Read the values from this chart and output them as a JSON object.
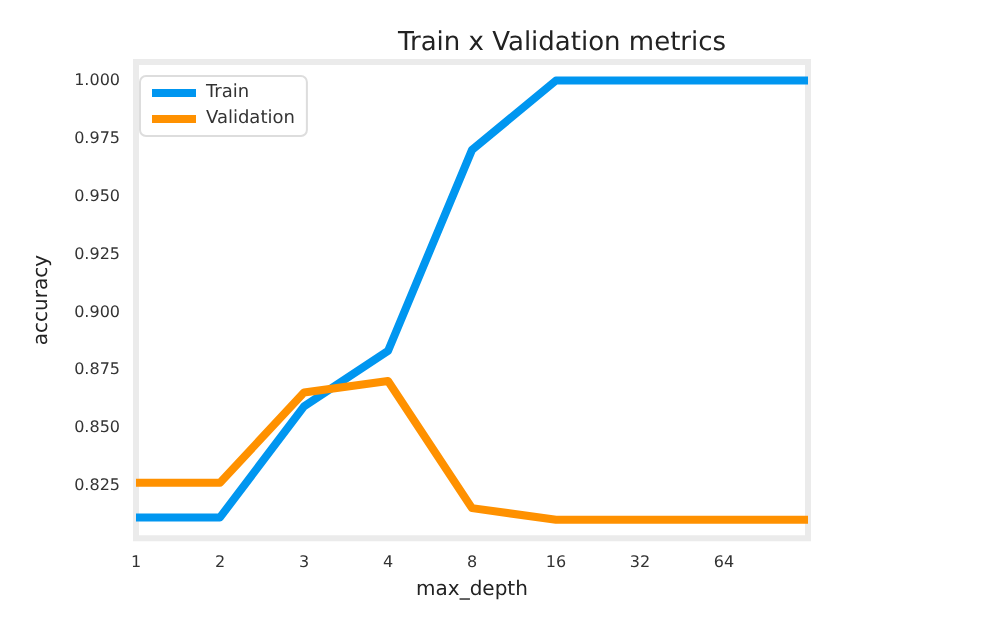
{
  "chart_data": {
    "type": "line",
    "title": "Train x Validation metrics",
    "xlabel": "max_depth",
    "ylabel": "accuracy",
    "categories": [
      "1",
      "2",
      "3",
      "4",
      "8",
      "16",
      "32",
      "64",
      null
    ],
    "series": [
      {
        "name": "Train",
        "color": "#0096f0",
        "values": [
          0.811,
          0.811,
          0.859,
          0.883,
          0.97,
          1.0,
          1.0,
          1.0,
          1.0
        ]
      },
      {
        "name": "Validation",
        "color": "#ff9100",
        "values": [
          0.826,
          0.826,
          0.865,
          0.87,
          0.815,
          0.81,
          0.81,
          0.81,
          0.81
        ]
      }
    ],
    "ylim": [
      0.802,
      1.008
    ],
    "yticks": [
      0.825,
      {
        "value": 0.85,
        "label": "0.850"
      },
      0.875,
      {
        "value": 0.9,
        "label": "0.900"
      },
      0.925,
      {
        "value": 0.95,
        "label": "0.950"
      },
      0.975,
      {
        "value": 1.0,
        "label": "1.000"
      }
    ],
    "grid": false,
    "legend": "top left",
    "marker": "none",
    "line_style": "solid"
  }
}
